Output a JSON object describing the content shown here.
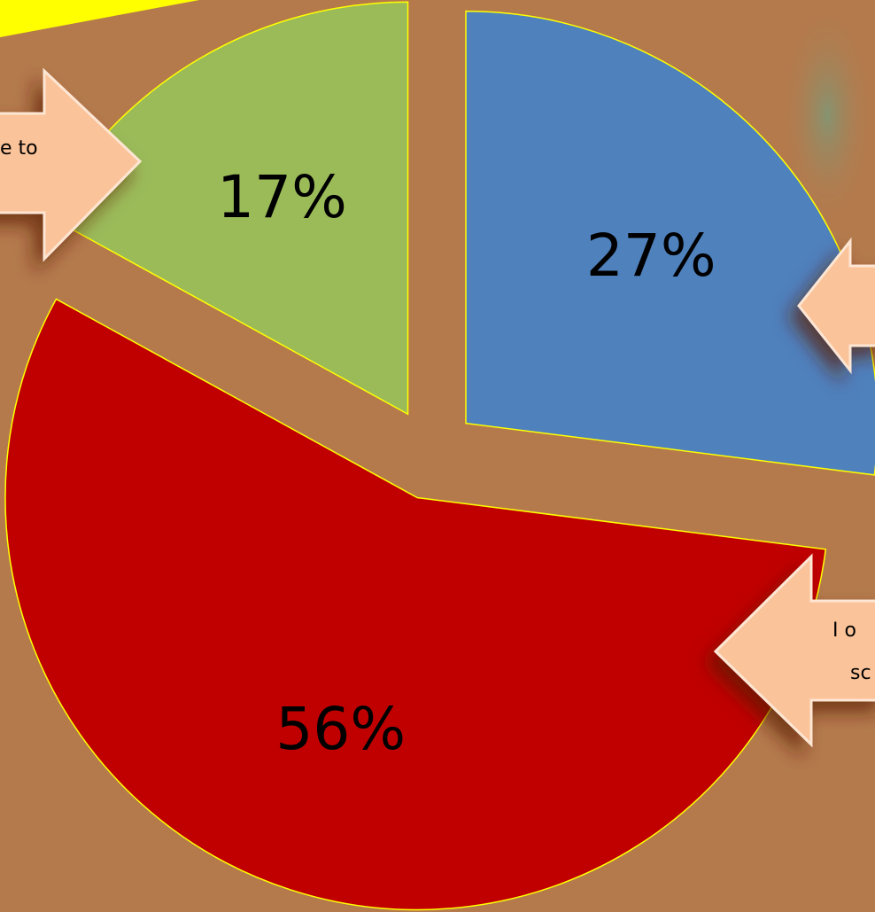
{
  "chart_data": {
    "type": "pie",
    "categories": [
      null,
      null,
      null
    ],
    "values": [
      27,
      56,
      17
    ],
    "value_labels": [
      "27%",
      "56%",
      "17%"
    ],
    "colors": [
      "#4f81bd",
      "#c00000",
      "#9bbb59"
    ],
    "annotations": [
      {
        "lines": [
          "e to"
        ]
      },
      {
        "lines": [
          "I o",
          "sc"
        ]
      }
    ]
  }
}
